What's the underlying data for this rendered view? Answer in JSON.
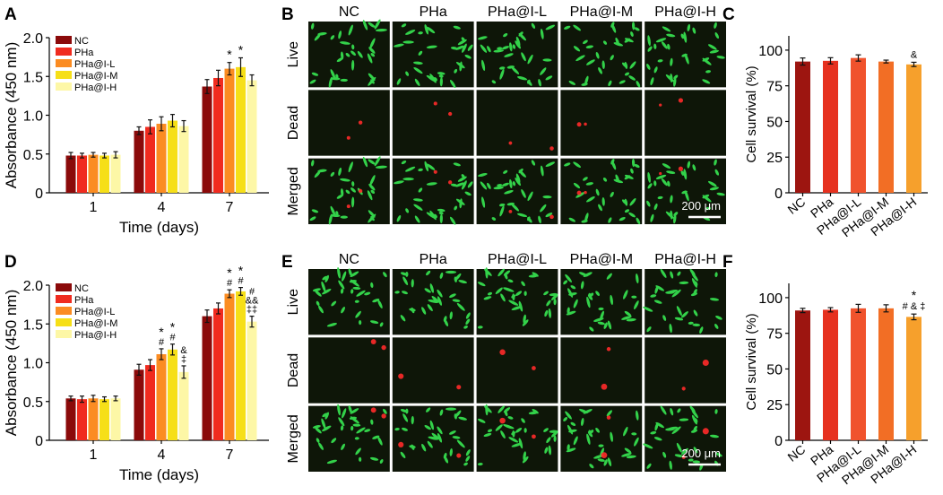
{
  "colors": {
    "series": [
      "#8b0a0a",
      "#f02b1f",
      "#fb8c22",
      "#f6df18",
      "#fdf7a6"
    ],
    "survival": [
      "#9d1510",
      "#e6311f",
      "#f0532d",
      "#f26e25",
      "#f6a02c"
    ],
    "live_cell": "#33d24a",
    "dead_cell": "#ff2a2a",
    "micrograph_bg": "#0e1608"
  },
  "panel_labels": {
    "A": "A",
    "B": "B",
    "C": "C",
    "D": "D",
    "E": "E",
    "F": "F"
  },
  "microscopy": [
    {
      "id": "B",
      "columns": [
        "NC",
        "PHa",
        "PHa@I-L",
        "PHa@I-M",
        "PHa@I-H"
      ],
      "rows": [
        "Live",
        "Dead",
        "Merged"
      ],
      "scale_bar": "200 μm"
    },
    {
      "id": "E",
      "columns": [
        "NC",
        "PHa",
        "PHa@I-L",
        "PHa@I-M",
        "PHa@I-H"
      ],
      "rows": [
        "Live",
        "Dead",
        "Merged"
      ],
      "scale_bar": "200 μm"
    }
  ],
  "chart_data": [
    {
      "id": "A",
      "type": "bar",
      "xlabel": "Time (days)",
      "ylabel": "Absorbance (450 nm)",
      "ylim": [
        0,
        2.0
      ],
      "yticks": [
        "0",
        "0.5",
        "1.0",
        "1.5",
        "2.0"
      ],
      "categories": [
        "1",
        "4",
        "7"
      ],
      "legend": "top-left",
      "series": [
        {
          "name": "NC",
          "values": [
            0.48,
            0.8,
            1.37
          ],
          "errors": [
            0.04,
            0.05,
            0.09
          ]
        },
        {
          "name": "PHa",
          "values": [
            0.48,
            0.85,
            1.48
          ],
          "errors": [
            0.03,
            0.09,
            0.1
          ]
        },
        {
          "name": "PHa@I-L",
          "values": [
            0.49,
            0.89,
            1.6
          ],
          "errors": [
            0.03,
            0.09,
            0.08
          ]
        },
        {
          "name": "PHa@I-M",
          "values": [
            0.48,
            0.93,
            1.62
          ],
          "errors": [
            0.03,
            0.08,
            0.12
          ]
        },
        {
          "name": "PHa@I-H",
          "values": [
            0.49,
            0.86,
            1.45
          ],
          "errors": [
            0.04,
            0.07,
            0.07
          ]
        }
      ],
      "annotations": [
        {
          "category": "7",
          "series": "PHa@I-L",
          "lines": [
            "*"
          ]
        },
        {
          "category": "7",
          "series": "PHa@I-M",
          "lines": [
            "*"
          ]
        }
      ]
    },
    {
      "id": "C",
      "type": "bar",
      "xlabel": "",
      "ylabel": "Cell survival (%)",
      "ylim": [
        0,
        110
      ],
      "yticks": [
        "0",
        "25",
        "50",
        "75",
        "100"
      ],
      "categories": [
        "NC",
        "PHa",
        "PHa@I-L",
        "PHa@I-M",
        "PHa@I-H"
      ],
      "values": [
        92,
        92.5,
        94.5,
        92,
        90
      ],
      "errors": [
        2.5,
        2.2,
        2.2,
        1.0,
        1.5
      ],
      "annotations": [
        {
          "category": "PHa@I-H",
          "lines": [
            "&"
          ]
        }
      ]
    },
    {
      "id": "D",
      "type": "bar",
      "xlabel": "Time (days)",
      "ylabel": "Absorbance (450 nm)",
      "ylim": [
        0,
        2.0
      ],
      "yticks": [
        "0",
        "0.5",
        "1.0",
        "1.5",
        "2.0"
      ],
      "categories": [
        "1",
        "4",
        "7"
      ],
      "legend": "top-left",
      "series": [
        {
          "name": "NC",
          "values": [
            0.54,
            0.91,
            1.6
          ],
          "errors": [
            0.03,
            0.07,
            0.08
          ]
        },
        {
          "name": "PHa",
          "values": [
            0.53,
            0.97,
            1.7
          ],
          "errors": [
            0.04,
            0.07,
            0.07
          ]
        },
        {
          "name": "PHa@I-L",
          "values": [
            0.54,
            1.11,
            1.89
          ],
          "errors": [
            0.04,
            0.07,
            0.05
          ]
        },
        {
          "name": "PHa@I-M",
          "values": [
            0.53,
            1.17,
            1.92
          ],
          "errors": [
            0.03,
            0.07,
            0.05
          ]
        },
        {
          "name": "PHa@I-H",
          "values": [
            0.54,
            0.88,
            1.53
          ],
          "errors": [
            0.03,
            0.08,
            0.07
          ]
        }
      ],
      "annotations": [
        {
          "category": "4",
          "series": "PHa@I-L",
          "lines": [
            "*",
            "#"
          ]
        },
        {
          "category": "4",
          "series": "PHa@I-M",
          "lines": [
            "*",
            "#"
          ]
        },
        {
          "category": "4",
          "series": "PHa@I-H",
          "lines": [
            "&",
            "‡"
          ]
        },
        {
          "category": "7",
          "series": "PHa@I-L",
          "lines": [
            "*",
            "#"
          ]
        },
        {
          "category": "7",
          "series": "PHa@I-M",
          "lines": [
            "*",
            "#"
          ]
        },
        {
          "category": "7",
          "series": "PHa@I-H",
          "lines": [
            "#",
            "&&",
            "‡‡"
          ]
        }
      ]
    },
    {
      "id": "F",
      "type": "bar",
      "xlabel": "",
      "ylabel": "Cell survival (%)",
      "ylim": [
        0,
        110
      ],
      "yticks": [
        "0",
        "25",
        "50",
        "75",
        "100"
      ],
      "categories": [
        "NC",
        "PHa",
        "PHa@I-L",
        "PHa@I-M",
        "PHa@I-H"
      ],
      "values": [
        91,
        91.5,
        92.5,
        92.5,
        86.5
      ],
      "errors": [
        1.5,
        1.5,
        2.8,
        2.5,
        2.0
      ],
      "annotations": [
        {
          "category": "PHa@I-H",
          "lines": [
            "*",
            "# & ‡"
          ]
        }
      ]
    }
  ]
}
